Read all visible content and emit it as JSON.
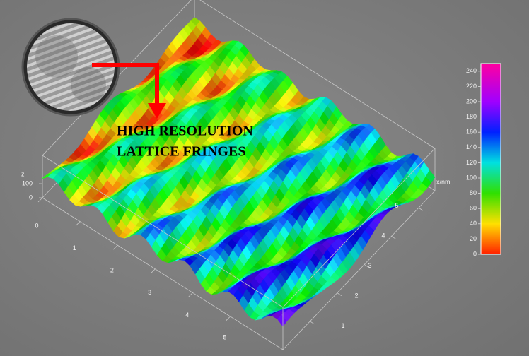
{
  "chart_data": {
    "type": "surface",
    "annotation": [
      "HIGH RESOLUTION",
      "LATTICE FRINGES"
    ],
    "x_label": "x/nm",
    "xlim": [
      0,
      5.6
    ],
    "xticks": [
      1,
      2,
      3,
      4,
      5
    ],
    "ylim": [
      0,
      6.4
    ],
    "yticks": [
      0,
      1,
      2,
      3,
      4,
      5
    ],
    "z_label": "z",
    "zlim": [
      0,
      300
    ],
    "zticks": [
      0,
      100
    ],
    "colorbar": {
      "lim": [
        0,
        250
      ],
      "ticks": [
        0,
        20,
        40,
        60,
        80,
        100,
        120,
        140,
        160,
        180,
        200,
        220,
        240
      ]
    }
  }
}
